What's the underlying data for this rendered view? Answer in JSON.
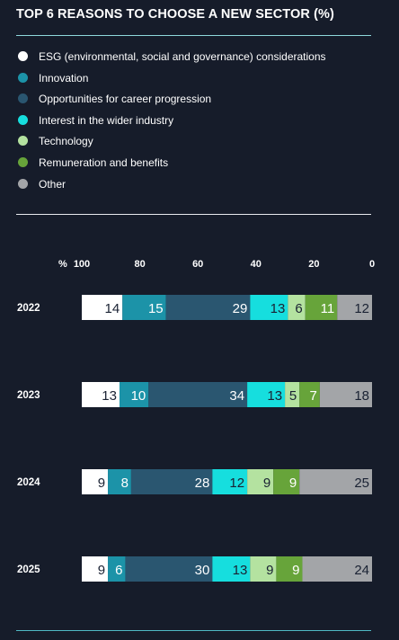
{
  "title": "TOP 6 REASONS TO CHOOSE A NEW SECTOR (%)",
  "legend": [
    {
      "label": "ESG (environmental, social and governance) considerations",
      "color": "#ffffff"
    },
    {
      "label": "Innovation",
      "color": "#1c93a8"
    },
    {
      "label": "Opportunities for career progression",
      "color": "#2a5670"
    },
    {
      "label": "Interest in the wider industry",
      "color": "#16dede"
    },
    {
      "label": "Technology",
      "color": "#b4e2a0"
    },
    {
      "label": "Remuneration and benefits",
      "color": "#67a43a"
    },
    {
      "label": "Other",
      "color": "#a3a5a8"
    }
  ],
  "chart_data": {
    "type": "bar",
    "orientation": "horizontal-stacked",
    "title": "TOP 6 REASONS TO CHOOSE A NEW SECTOR (%)",
    "axis_unit_label": "%",
    "x_ticks": [
      100,
      80,
      60,
      40,
      20,
      0
    ],
    "xlim": [
      100,
      0
    ],
    "categories": [
      "2022",
      "2023",
      "2024",
      "2025"
    ],
    "series": [
      {
        "name": "ESG (environmental, social and governance) considerations",
        "color": "#ffffff",
        "label_color": "#1a2233",
        "values": [
          14,
          13,
          9,
          9
        ]
      },
      {
        "name": "Innovation",
        "color": "#1c93a8",
        "label_color": "#ffffff",
        "values": [
          15,
          10,
          8,
          6
        ]
      },
      {
        "name": "Opportunities for career progression",
        "color": "#2a5670",
        "label_color": "#ffffff",
        "values": [
          29,
          34,
          28,
          30
        ]
      },
      {
        "name": "Interest in the wider industry",
        "color": "#16dede",
        "label_color": "#1a2233",
        "values": [
          13,
          13,
          12,
          13
        ]
      },
      {
        "name": "Technology",
        "color": "#b4e2a0",
        "label_color": "#1a2233",
        "values": [
          6,
          5,
          9,
          9
        ]
      },
      {
        "name": "Remuneration and benefits",
        "color": "#67a43a",
        "label_color": "#ffffff",
        "values": [
          11,
          7,
          9,
          9
        ]
      },
      {
        "name": "Other",
        "color": "#a3a5a8",
        "label_color": "#1a2233",
        "values": [
          12,
          18,
          25,
          24
        ]
      }
    ],
    "legend_position": "top-left",
    "grid": false
  }
}
